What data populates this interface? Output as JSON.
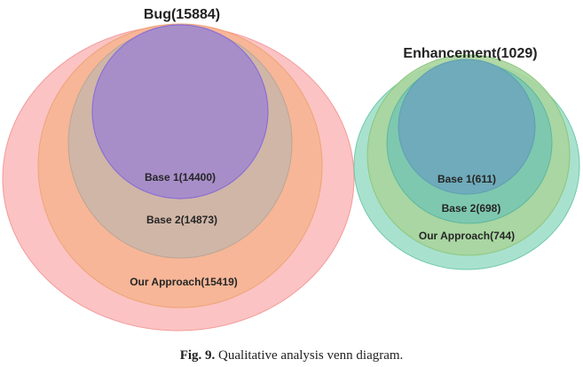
{
  "diagram": {
    "type": "nested-venn",
    "groups": [
      {
        "id": "bug",
        "title": "Bug(15884)",
        "sets": [
          {
            "label": "Our Approach(15419)",
            "color": "#f6a58c"
          },
          {
            "label": "Base 2(14873)",
            "color": "#c8b6a8"
          },
          {
            "label": "Base 1(14400)",
            "color": "#a68ec8"
          }
        ],
        "outer_color": "#fbc3c3"
      },
      {
        "id": "enhancement",
        "title": "Enhancement(1029)",
        "sets": [
          {
            "label": "Our Approach(744)",
            "color": "#a9d59a"
          },
          {
            "label": "Base 2(698)",
            "color": "#78c7b1"
          },
          {
            "label": "Base 1(611)",
            "color": "#6fabba"
          }
        ],
        "outer_color": "#a9e1cf"
      }
    ]
  },
  "caption": {
    "label": "Fig. 9.",
    "text": "Qualitative analysis venn diagram."
  }
}
